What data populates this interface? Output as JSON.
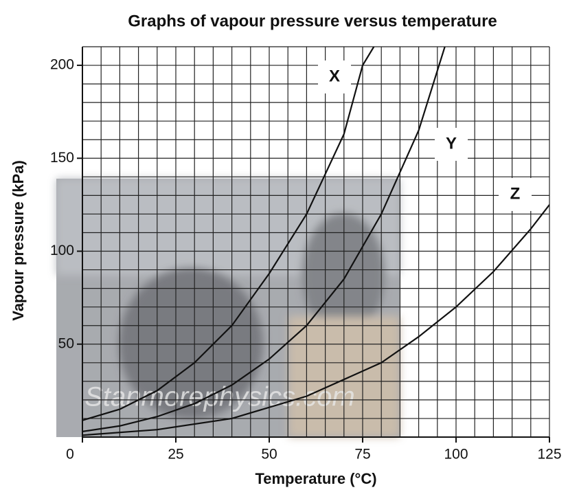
{
  "chart_data": {
    "type": "line",
    "title": "Graphs of vapour pressure versus temperature",
    "x_label": "Temperature (°C)",
    "y_label": "Vapour pressure (kPa)",
    "watermark": "Stanmorephysics.com",
    "xlim": [
      0,
      125
    ],
    "ylim": [
      0,
      210
    ],
    "xticks": [
      0,
      25,
      50,
      75,
      100,
      125
    ],
    "yticks": [
      50,
      100,
      150,
      200
    ],
    "grid": true,
    "grid_step": {
      "x": 5,
      "y": 10
    },
    "series": [
      {
        "name": "X",
        "color": "#111111",
        "x": [
          0,
          10,
          20,
          30,
          40,
          50,
          60,
          70,
          75,
          78
        ],
        "values": [
          9,
          15,
          25,
          40,
          60,
          88,
          120,
          163,
          200,
          210
        ]
      },
      {
        "name": "Y",
        "color": "#111111",
        "x": [
          0,
          10,
          20,
          30,
          40,
          50,
          60,
          70,
          80,
          90,
          97
        ],
        "values": [
          3,
          6,
          11,
          18,
          28,
          42,
          60,
          85,
          120,
          165,
          210
        ]
      },
      {
        "name": "Z",
        "color": "#111111",
        "x": [
          0,
          20,
          40,
          60,
          80,
          90,
          100,
          110,
          120,
          125
        ],
        "values": [
          1,
          4,
          10,
          22,
          40,
          54,
          70,
          89,
          112,
          125
        ]
      }
    ]
  }
}
